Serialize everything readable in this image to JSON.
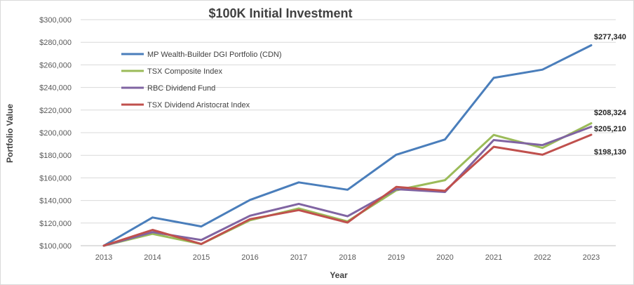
{
  "chart_data": {
    "type": "line",
    "title": "$100K Initial Investment",
    "xlabel": "Year",
    "ylabel": "Portfolio Value",
    "categories": [
      "2013",
      "2014",
      "2015",
      "2016",
      "2017",
      "2018",
      "2019",
      "2020",
      "2021",
      "2022",
      "2023"
    ],
    "ylim": [
      100000,
      300000
    ],
    "yticks": [
      100000,
      120000,
      140000,
      160000,
      180000,
      200000,
      220000,
      240000,
      260000,
      280000,
      300000
    ],
    "ytick_labels": [
      "$100,000",
      "$120,000",
      "$140,000",
      "$160,000",
      "$180,000",
      "$200,000",
      "$220,000",
      "$240,000",
      "$260,000",
      "$280,000",
      "$300,000"
    ],
    "grid": true,
    "legend_position": "top-left",
    "series": [
      {
        "name": "MP Wealth-Builder DGI Portfolio (CDN)",
        "color": "#4a7ebb",
        "values": [
          100000,
          125000,
          117000,
          140500,
          156000,
          149500,
          180500,
          194000,
          248500,
          255800,
          277340
        ],
        "end_label": "$277,340"
      },
      {
        "name": "TSX Composite Index",
        "color": "#9bbb59",
        "values": [
          100000,
          110500,
          101500,
          122500,
          133000,
          121500,
          149000,
          158000,
          198000,
          186500,
          208324
        ],
        "end_label": "$208,324"
      },
      {
        "name": "RBC Dividend Fund",
        "color": "#8064a2",
        "values": [
          100000,
          112000,
          105000,
          126500,
          137000,
          126000,
          150000,
          147500,
          193500,
          189000,
          205210
        ],
        "end_label": "$205,210"
      },
      {
        "name": "TSX Dividend Aristocrat Index",
        "color": "#c0504d",
        "values": [
          100000,
          114000,
          101500,
          123500,
          131500,
          120500,
          152000,
          148500,
          187500,
          180500,
          198130
        ],
        "end_label": "$198,130"
      }
    ]
  }
}
